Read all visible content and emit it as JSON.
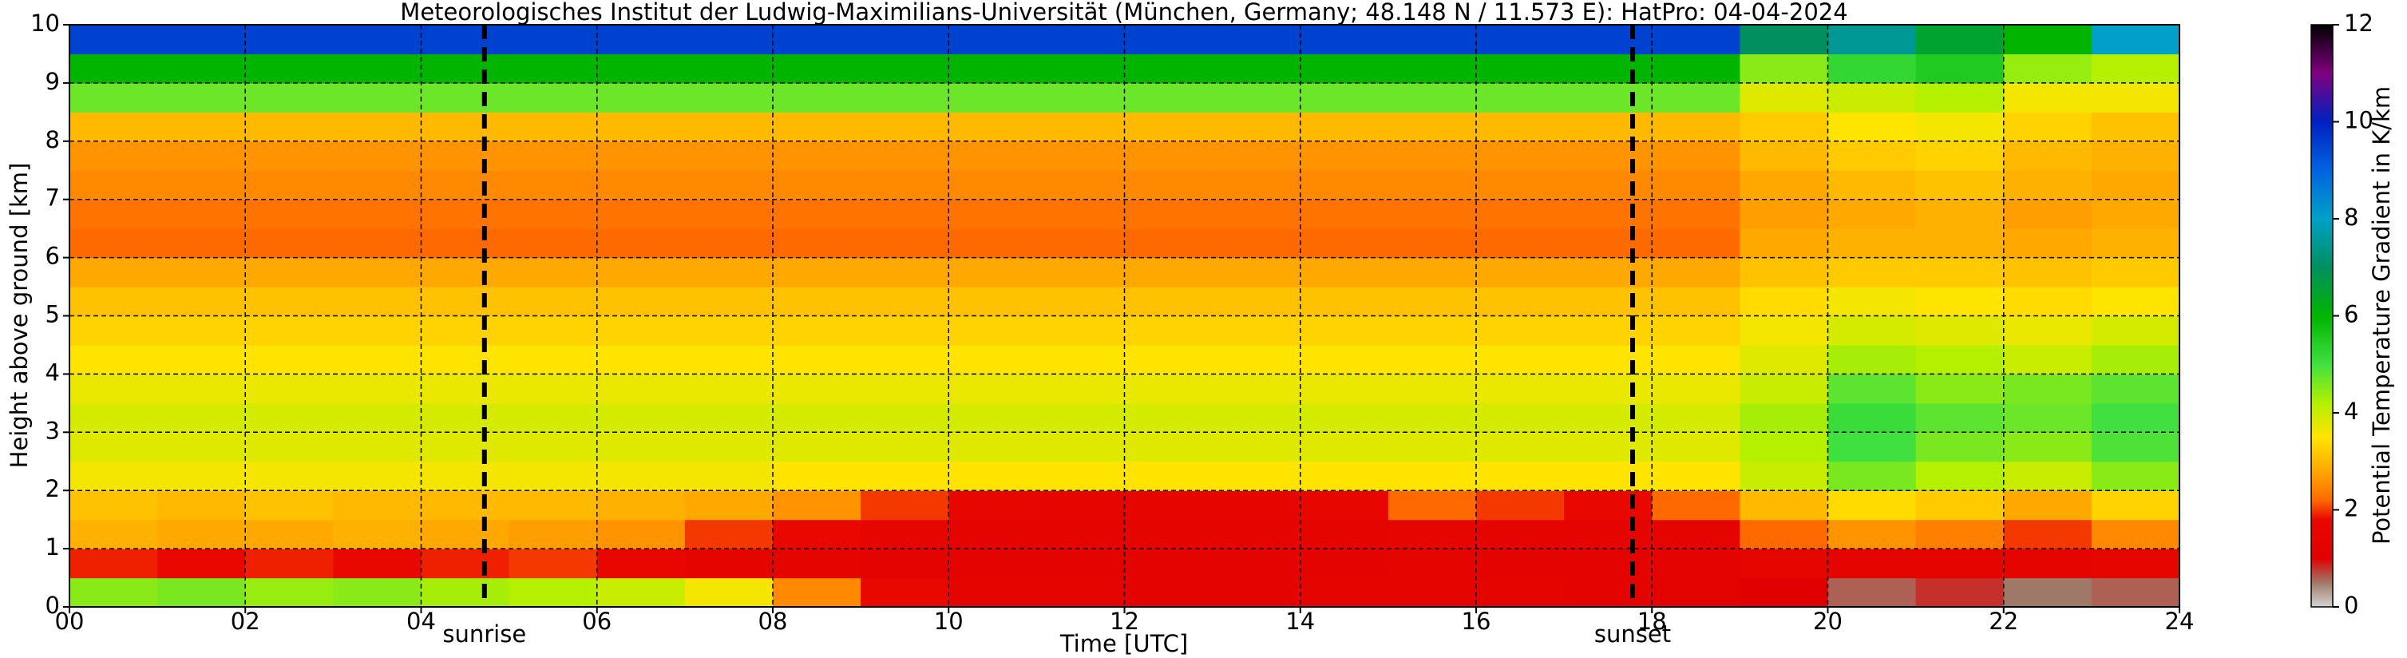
{
  "chart_data": {
    "type": "heatmap",
    "title": "Meteorologisches Institut der Ludwig-Maximilians-Universität (München, Germany; 48.148 N / 11.573 E):    HatPro: 04-04-2024",
    "xlabel": "Time [UTC]",
    "ylabel": "Height above ground [km]",
    "colorbar_label": "Potential Temperature Gradient in K/km",
    "xlim": [
      0,
      24
    ],
    "ylim": [
      0,
      10
    ],
    "clim": [
      0,
      12
    ],
    "xticks": [
      {
        "value": 0,
        "label": "00"
      },
      {
        "value": 2,
        "label": "02"
      },
      {
        "value": 4,
        "label": "04"
      },
      {
        "value": 6,
        "label": "06"
      },
      {
        "value": 8,
        "label": "08"
      },
      {
        "value": 10,
        "label": "10"
      },
      {
        "value": 12,
        "label": "12"
      },
      {
        "value": 14,
        "label": "14"
      },
      {
        "value": 16,
        "label": "16"
      },
      {
        "value": 18,
        "label": "18"
      },
      {
        "value": 20,
        "label": "20"
      },
      {
        "value": 22,
        "label": "22"
      },
      {
        "value": 24,
        "label": "24"
      }
    ],
    "yticks": [
      0,
      1,
      2,
      3,
      4,
      5,
      6,
      7,
      8,
      9,
      10
    ],
    "cticks": [
      0,
      2,
      4,
      6,
      8,
      10,
      12
    ],
    "grid": true,
    "vlines": [
      {
        "x": 4.72,
        "label": "sunrise"
      },
      {
        "x": 17.78,
        "label": "sunset"
      }
    ],
    "colormap": [
      {
        "value": 0,
        "color": "#d4d4d4"
      },
      {
        "value": 0.5,
        "color": "#a07868"
      },
      {
        "value": 1,
        "color": "#e00000"
      },
      {
        "value": 1.8,
        "color": "#e80800"
      },
      {
        "value": 2.2,
        "color": "#ff6a00"
      },
      {
        "value": 2.8,
        "color": "#ffa800"
      },
      {
        "value": 3.5,
        "color": "#ffe400"
      },
      {
        "value": 4.2,
        "color": "#b4f000"
      },
      {
        "value": 5,
        "color": "#40e040"
      },
      {
        "value": 6,
        "color": "#00b400"
      },
      {
        "value": 7,
        "color": "#009060"
      },
      {
        "value": 8,
        "color": "#00a0c8"
      },
      {
        "value": 9,
        "color": "#0064e0"
      },
      {
        "value": 10,
        "color": "#0020c0"
      },
      {
        "value": 11,
        "color": "#800080"
      },
      {
        "value": 12,
        "color": "#000000"
      }
    ],
    "x_edges": [
      0,
      1,
      2,
      3,
      4,
      5,
      6,
      7,
      8,
      9,
      10,
      11,
      12,
      13,
      14,
      15,
      16,
      17,
      18,
      19,
      20,
      21,
      22,
      23,
      24
    ],
    "y_edges": [
      0,
      0.5,
      1,
      1.5,
      2,
      2.5,
      3,
      3.5,
      4,
      4.5,
      5,
      5.5,
      6,
      6.5,
      7,
      7.5,
      8,
      8.5,
      9,
      9.5,
      10
    ],
    "z": [
      [
        4.5,
        4.6,
        4.4,
        4.5,
        4.3,
        4.2,
        4.0,
        3.6,
        2.5,
        1.8,
        1.5,
        1.4,
        1.3,
        1.3,
        1.4,
        1.4,
        1.5,
        1.3,
        1.2,
        1.0,
        0.6,
        0.8,
        0.5,
        0.6
      ],
      [
        1.9,
        1.8,
        1.9,
        1.8,
        1.9,
        2.0,
        1.7,
        1.5,
        1.4,
        1.3,
        1.3,
        1.3,
        1.3,
        1.3,
        1.3,
        1.4,
        1.3,
        1.3,
        1.3,
        1.6,
        1.4,
        1.5,
        1.4,
        1.6
      ],
      [
        2.9,
        2.8,
        2.8,
        2.9,
        2.8,
        2.7,
        2.6,
        2.0,
        1.8,
        1.6,
        1.5,
        1.4,
        1.4,
        1.4,
        1.4,
        1.6,
        1.5,
        1.4,
        1.5,
        2.2,
        2.6,
        2.4,
        2.0,
        2.5
      ],
      [
        3.1,
        3.0,
        3.1,
        3.0,
        3.0,
        3.0,
        2.9,
        2.8,
        2.6,
        2.0,
        1.7,
        1.6,
        1.6,
        1.6,
        1.7,
        2.2,
        2.0,
        1.8,
        2.2,
        3.0,
        3.4,
        3.2,
        2.8,
        3.3
      ],
      [
        3.6,
        3.6,
        3.6,
        3.6,
        3.6,
        3.6,
        3.6,
        3.6,
        3.5,
        3.5,
        3.5,
        3.5,
        3.5,
        3.5,
        3.5,
        3.5,
        3.5,
        3.5,
        3.5,
        4.0,
        4.6,
        4.2,
        4.0,
        4.5
      ],
      [
        3.8,
        3.8,
        3.8,
        3.8,
        3.8,
        3.8,
        3.8,
        3.8,
        3.8,
        3.8,
        3.8,
        3.8,
        3.8,
        3.8,
        3.8,
        3.8,
        3.8,
        3.8,
        3.8,
        4.2,
        5.0,
        4.6,
        4.5,
        4.9
      ],
      [
        3.9,
        3.9,
        3.9,
        3.9,
        3.9,
        3.9,
        3.9,
        3.9,
        3.9,
        3.9,
        3.9,
        3.9,
        3.9,
        3.9,
        3.9,
        3.9,
        3.9,
        3.9,
        3.9,
        4.3,
        5.1,
        4.8,
        4.7,
        5.0
      ],
      [
        3.7,
        3.7,
        3.7,
        3.7,
        3.7,
        3.7,
        3.7,
        3.7,
        3.7,
        3.7,
        3.7,
        3.7,
        3.7,
        3.7,
        3.7,
        3.7,
        3.7,
        3.7,
        3.7,
        4.0,
        4.8,
        4.5,
        4.6,
        4.8
      ],
      [
        3.5,
        3.5,
        3.5,
        3.5,
        3.5,
        3.5,
        3.5,
        3.5,
        3.5,
        3.5,
        3.5,
        3.5,
        3.5,
        3.5,
        3.5,
        3.5,
        3.5,
        3.5,
        3.5,
        3.8,
        4.3,
        4.2,
        4.0,
        4.3
      ],
      [
        3.3,
        3.3,
        3.3,
        3.3,
        3.3,
        3.3,
        3.3,
        3.3,
        3.3,
        3.3,
        3.3,
        3.3,
        3.3,
        3.3,
        3.3,
        3.3,
        3.3,
        3.3,
        3.3,
        3.6,
        3.9,
        3.8,
        3.7,
        3.9
      ],
      [
        3.1,
        3.1,
        3.1,
        3.1,
        3.1,
        3.1,
        3.1,
        3.1,
        3.1,
        3.1,
        3.1,
        3.1,
        3.1,
        3.1,
        3.1,
        3.1,
        3.1,
        3.1,
        3.1,
        3.4,
        3.6,
        3.5,
        3.4,
        3.5
      ],
      [
        2.8,
        2.8,
        2.8,
        2.8,
        2.8,
        2.8,
        2.8,
        2.8,
        2.8,
        2.8,
        2.8,
        2.8,
        2.8,
        2.8,
        2.8,
        2.8,
        2.8,
        2.8,
        2.8,
        3.1,
        3.2,
        3.2,
        3.1,
        3.2
      ],
      [
        2.2,
        2.2,
        2.2,
        2.2,
        2.2,
        2.2,
        2.2,
        2.2,
        2.2,
        2.2,
        2.2,
        2.2,
        2.2,
        2.2,
        2.2,
        2.2,
        2.2,
        2.2,
        2.2,
        2.8,
        2.9,
        2.9,
        2.8,
        2.9
      ],
      [
        2.3,
        2.3,
        2.3,
        2.3,
        2.3,
        2.3,
        2.3,
        2.3,
        2.3,
        2.3,
        2.3,
        2.3,
        2.3,
        2.3,
        2.3,
        2.3,
        2.3,
        2.3,
        2.3,
        2.7,
        2.8,
        2.9,
        2.7,
        2.8
      ],
      [
        2.5,
        2.5,
        2.5,
        2.5,
        2.5,
        2.5,
        2.5,
        2.5,
        2.5,
        2.5,
        2.5,
        2.5,
        2.5,
        2.5,
        2.5,
        2.5,
        2.5,
        2.5,
        2.5,
        2.8,
        3.0,
        3.1,
        2.9,
        2.8
      ],
      [
        2.6,
        2.6,
        2.6,
        2.6,
        2.6,
        2.6,
        2.6,
        2.6,
        2.6,
        2.6,
        2.6,
        2.6,
        2.6,
        2.6,
        2.6,
        2.6,
        2.6,
        2.6,
        2.6,
        3.0,
        3.2,
        3.3,
        3.0,
        2.9
      ],
      [
        3.0,
        3.0,
        3.0,
        3.0,
        3.0,
        3.0,
        3.0,
        3.0,
        3.0,
        3.0,
        3.0,
        3.0,
        3.0,
        3.0,
        3.0,
        3.0,
        3.0,
        3.0,
        3.0,
        3.2,
        3.5,
        3.6,
        3.3,
        3.1
      ],
      [
        4.7,
        4.7,
        4.7,
        4.7,
        4.7,
        4.7,
        4.7,
        4.7,
        4.7,
        4.7,
        4.7,
        4.7,
        4.7,
        4.7,
        4.7,
        4.7,
        4.7,
        4.7,
        4.7,
        3.8,
        4.0,
        4.2,
        3.6,
        3.6
      ],
      [
        6.0,
        6.0,
        6.0,
        6.0,
        6.0,
        6.0,
        6.0,
        6.0,
        6.0,
        6.0,
        6.0,
        6.0,
        6.0,
        6.0,
        6.0,
        6.0,
        6.0,
        6.0,
        6.0,
        4.5,
        5.2,
        5.5,
        4.4,
        4.2
      ],
      [
        9.5,
        9.5,
        9.5,
        9.5,
        9.5,
        9.5,
        9.5,
        9.5,
        9.5,
        9.5,
        9.5,
        9.5,
        9.5,
        9.5,
        9.5,
        9.5,
        9.5,
        9.5,
        9.5,
        7.0,
        7.5,
        6.5,
        6.0,
        8.0
      ]
    ]
  }
}
